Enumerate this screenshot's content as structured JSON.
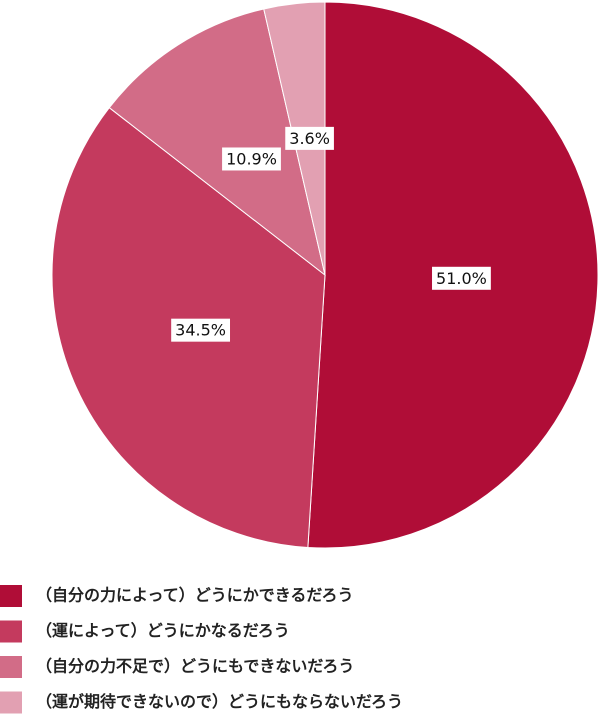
{
  "chart_data": {
    "type": "pie",
    "categories": [
      "（自分の力によって）どうにかできるだろう",
      "（運によって）どうにかなるだろう",
      "（自分の力不足で）どうにもできないだろう",
      "（運が期待できないので）どうにもならないだろう"
    ],
    "values": [
      51.0,
      34.5,
      10.9,
      3.6
    ],
    "value_labels": [
      "51.0%",
      "34.5%",
      "10.9%",
      "3.6%"
    ],
    "colors": [
      "#b00d37",
      "#c43a5e",
      "#d26c87",
      "#e2a0b2"
    ]
  }
}
